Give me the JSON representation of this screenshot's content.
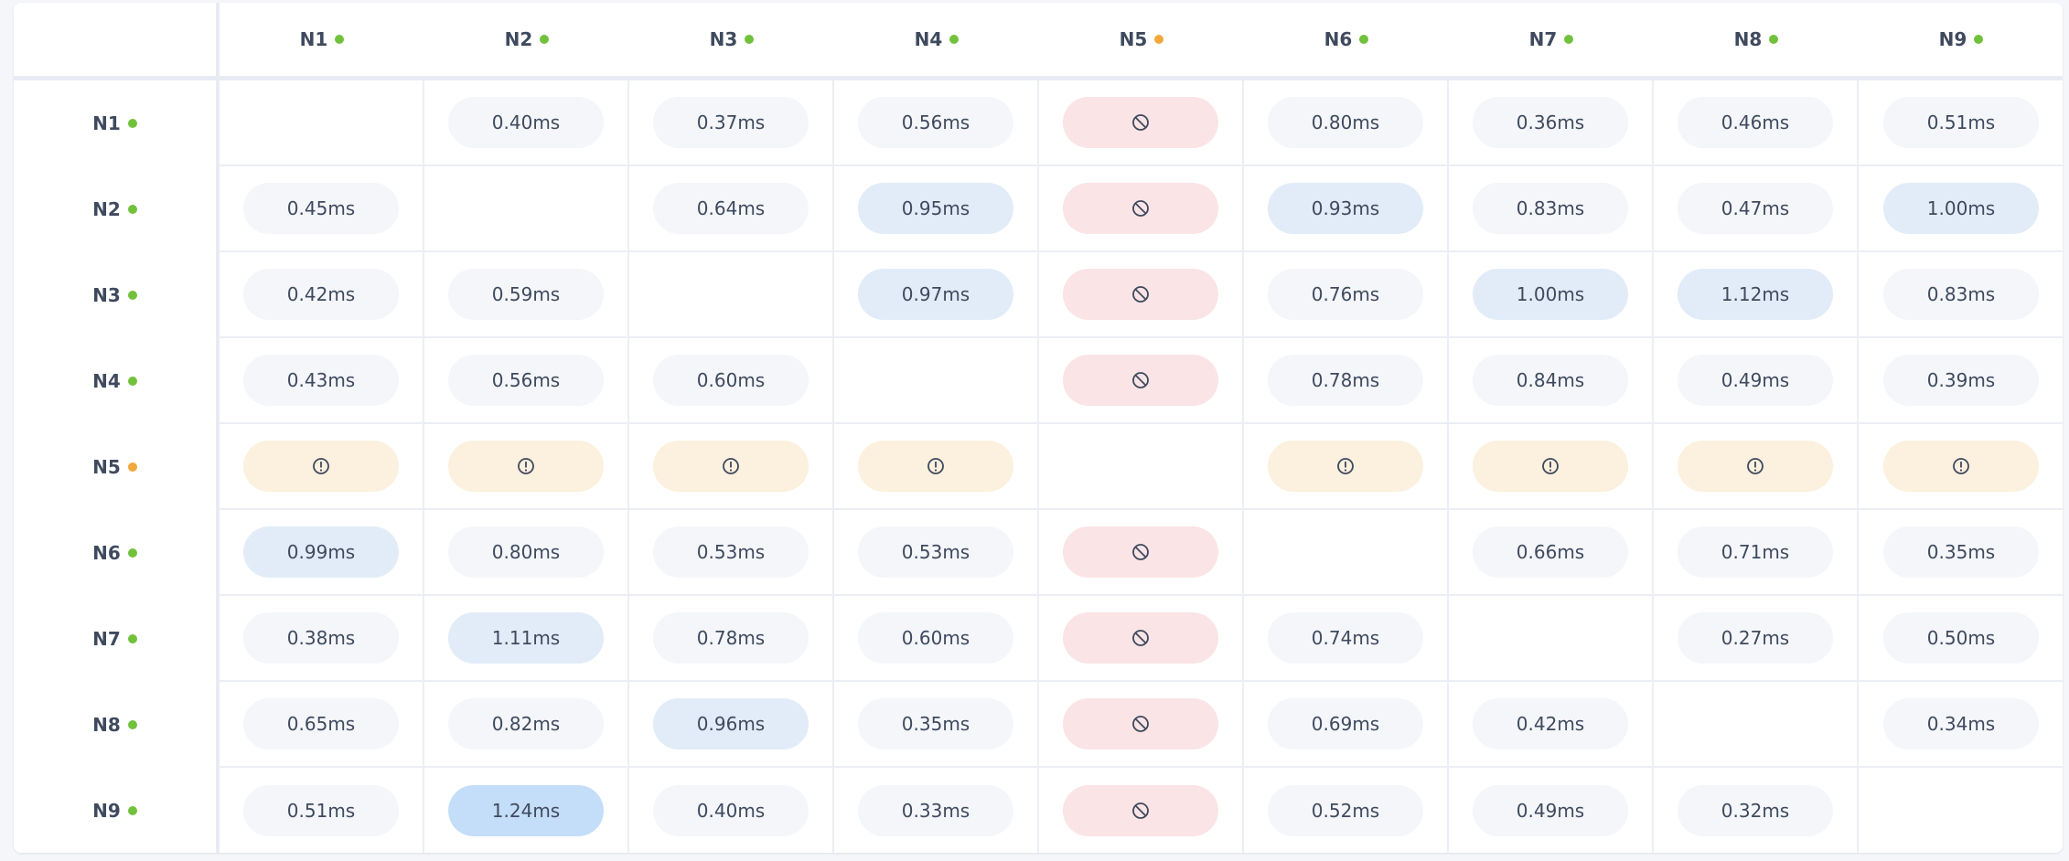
{
  "colors": {
    "online": "#72c13c",
    "warning": "#f2a93b",
    "pill_normal": "#f4f6fa",
    "pill_elevated": "#e2ecf8",
    "pill_high": "#c4ddf8",
    "pill_blocked": "#fae4e6",
    "pill_warning": "#fcf0de"
  },
  "nodes": [
    {
      "label": "N1",
      "status": "online"
    },
    {
      "label": "N2",
      "status": "online"
    },
    {
      "label": "N3",
      "status": "online"
    },
    {
      "label": "N4",
      "status": "online"
    },
    {
      "label": "N5",
      "status": "warning"
    },
    {
      "label": "N6",
      "status": "online"
    },
    {
      "label": "N7",
      "status": "online"
    },
    {
      "label": "N8",
      "status": "online"
    },
    {
      "label": "N9",
      "status": "online"
    }
  ],
  "matrix": [
    [
      {
        "t": "self"
      },
      {
        "t": "normal",
        "v": "0.40ms"
      },
      {
        "t": "normal",
        "v": "0.37ms"
      },
      {
        "t": "normal",
        "v": "0.56ms"
      },
      {
        "t": "blocked",
        "icon": "blocked-icon"
      },
      {
        "t": "normal",
        "v": "0.80ms"
      },
      {
        "t": "normal",
        "v": "0.36ms"
      },
      {
        "t": "normal",
        "v": "0.46ms"
      },
      {
        "t": "normal",
        "v": "0.51ms"
      }
    ],
    [
      {
        "t": "normal",
        "v": "0.45ms"
      },
      {
        "t": "self"
      },
      {
        "t": "normal",
        "v": "0.64ms"
      },
      {
        "t": "elevated",
        "v": "0.95ms"
      },
      {
        "t": "blocked",
        "icon": "blocked-icon"
      },
      {
        "t": "elevated",
        "v": "0.93ms"
      },
      {
        "t": "normal",
        "v": "0.83ms"
      },
      {
        "t": "normal",
        "v": "0.47ms"
      },
      {
        "t": "elevated",
        "v": "1.00ms"
      }
    ],
    [
      {
        "t": "normal",
        "v": "0.42ms"
      },
      {
        "t": "normal",
        "v": "0.59ms"
      },
      {
        "t": "self"
      },
      {
        "t": "elevated",
        "v": "0.97ms"
      },
      {
        "t": "blocked",
        "icon": "blocked-icon"
      },
      {
        "t": "normal",
        "v": "0.76ms"
      },
      {
        "t": "elevated",
        "v": "1.00ms"
      },
      {
        "t": "elevated",
        "v": "1.12ms"
      },
      {
        "t": "normal",
        "v": "0.83ms"
      }
    ],
    [
      {
        "t": "normal",
        "v": "0.43ms"
      },
      {
        "t": "normal",
        "v": "0.56ms"
      },
      {
        "t": "normal",
        "v": "0.60ms"
      },
      {
        "t": "self"
      },
      {
        "t": "blocked",
        "icon": "blocked-icon"
      },
      {
        "t": "normal",
        "v": "0.78ms"
      },
      {
        "t": "normal",
        "v": "0.84ms"
      },
      {
        "t": "normal",
        "v": "0.49ms"
      },
      {
        "t": "normal",
        "v": "0.39ms"
      }
    ],
    [
      {
        "t": "warning",
        "icon": "warning-icon"
      },
      {
        "t": "warning",
        "icon": "warning-icon"
      },
      {
        "t": "warning",
        "icon": "warning-icon"
      },
      {
        "t": "warning",
        "icon": "warning-icon"
      },
      {
        "t": "self"
      },
      {
        "t": "warning",
        "icon": "warning-icon"
      },
      {
        "t": "warning",
        "icon": "warning-icon"
      },
      {
        "t": "warning",
        "icon": "warning-icon"
      },
      {
        "t": "warning",
        "icon": "warning-icon"
      }
    ],
    [
      {
        "t": "elevated",
        "v": "0.99ms"
      },
      {
        "t": "normal",
        "v": "0.80ms"
      },
      {
        "t": "normal",
        "v": "0.53ms"
      },
      {
        "t": "normal",
        "v": "0.53ms"
      },
      {
        "t": "blocked",
        "icon": "blocked-icon"
      },
      {
        "t": "self"
      },
      {
        "t": "normal",
        "v": "0.66ms"
      },
      {
        "t": "normal",
        "v": "0.71ms"
      },
      {
        "t": "normal",
        "v": "0.35ms"
      }
    ],
    [
      {
        "t": "normal",
        "v": "0.38ms"
      },
      {
        "t": "elevated",
        "v": "1.11ms"
      },
      {
        "t": "normal",
        "v": "0.78ms"
      },
      {
        "t": "normal",
        "v": "0.60ms"
      },
      {
        "t": "blocked",
        "icon": "blocked-icon"
      },
      {
        "t": "normal",
        "v": "0.74ms"
      },
      {
        "t": "self"
      },
      {
        "t": "normal",
        "v": "0.27ms"
      },
      {
        "t": "normal",
        "v": "0.50ms"
      }
    ],
    [
      {
        "t": "normal",
        "v": "0.65ms"
      },
      {
        "t": "normal",
        "v": "0.82ms"
      },
      {
        "t": "elevated",
        "v": "0.96ms"
      },
      {
        "t": "normal",
        "v": "0.35ms"
      },
      {
        "t": "blocked",
        "icon": "blocked-icon"
      },
      {
        "t": "normal",
        "v": "0.69ms"
      },
      {
        "t": "normal",
        "v": "0.42ms"
      },
      {
        "t": "self"
      },
      {
        "t": "normal",
        "v": "0.34ms"
      }
    ],
    [
      {
        "t": "normal",
        "v": "0.51ms"
      },
      {
        "t": "high",
        "v": "1.24ms"
      },
      {
        "t": "normal",
        "v": "0.40ms"
      },
      {
        "t": "normal",
        "v": "0.33ms"
      },
      {
        "t": "blocked",
        "icon": "blocked-icon"
      },
      {
        "t": "normal",
        "v": "0.52ms"
      },
      {
        "t": "normal",
        "v": "0.49ms"
      },
      {
        "t": "normal",
        "v": "0.32ms"
      },
      {
        "t": "self"
      }
    ]
  ]
}
